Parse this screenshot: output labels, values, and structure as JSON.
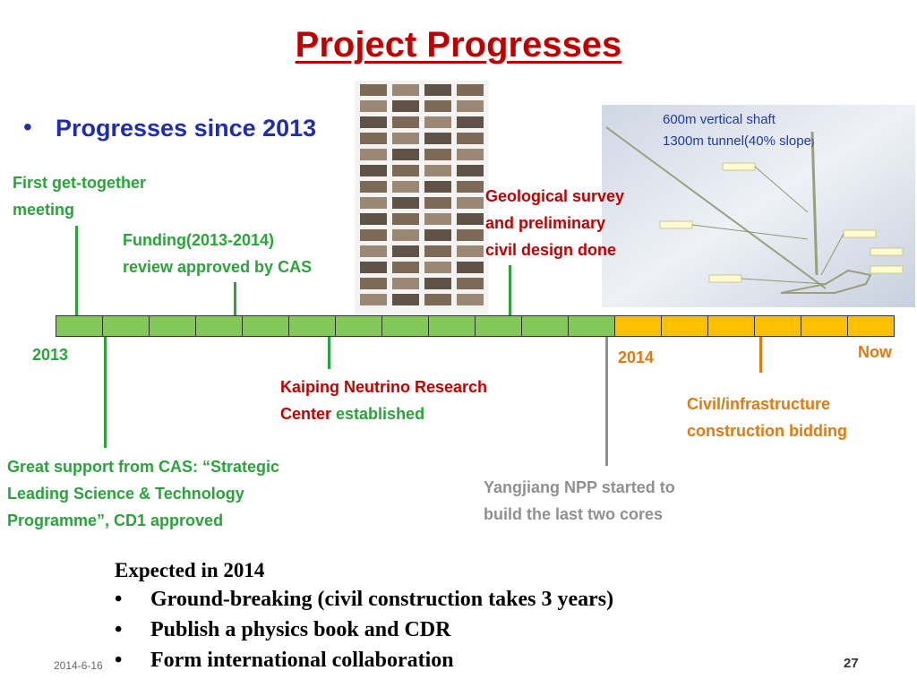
{
  "title": "Project Progresses",
  "bullet": "Progresses since 2013",
  "timeline": {
    "start_label": "2013",
    "mid_label": "2014",
    "end_label": "Now",
    "green_segments": 12,
    "yellow_segments": 6,
    "colors": {
      "green": "#83c95a",
      "yellow": "#ffc000"
    }
  },
  "events": {
    "meeting": {
      "line1": "First get-together",
      "line2": "meeting"
    },
    "funding": {
      "line1": "Funding(2013-2014)",
      "line2": "review approved by CAS"
    },
    "geo": {
      "line1": "Geological survey",
      "line2": "and preliminary",
      "line3": "civil design done"
    },
    "kaiping": {
      "line1": "Kaiping Neutrino Research",
      "line2a": "Center",
      "line2b": "established"
    },
    "civil": {
      "line1": "Civil/infrastructure",
      "line2": "construction bidding"
    },
    "yangjiang": {
      "line1": "Yangjiang NPP started to",
      "line2": "build the last two cores"
    },
    "cas": {
      "line1": "Great support from CAS: “Strategic",
      "line2": "Leading Science & Technology",
      "line3": "Programme”, CD1 approved"
    }
  },
  "tunnel_image": {
    "caption1": "600m vertical shaft",
    "caption2": "1300m tunnel(40% slope",
    "caption2_end": ")"
  },
  "expected": {
    "heading": "Expected in 2014",
    "items": [
      "Ground-breaking (civil construction takes 3 years)",
      "Publish a physics book and CDR",
      "Form international collaboration"
    ]
  },
  "footer": {
    "date": "2014-6-16",
    "page": "27"
  }
}
